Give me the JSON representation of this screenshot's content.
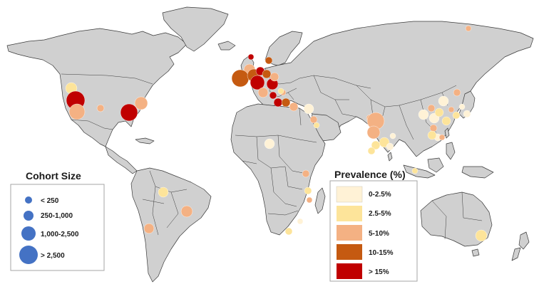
{
  "legends": {
    "cohort": {
      "title": "Cohort Size",
      "items": [
        {
          "label": "< 250"
        },
        {
          "label": "250-1,000"
        },
        {
          "label": "1,000-2,500"
        },
        {
          "label": "> 2,500"
        }
      ],
      "marker_color": "#4472c4"
    },
    "prevalence": {
      "title": "Prevalence (%)",
      "items": [
        {
          "label": "0-2.5%",
          "color": "#fff2d6"
        },
        {
          "label": "2.5-5%",
          "color": "#fde49a"
        },
        {
          "label": "5-10%",
          "color": "#f4b183"
        },
        {
          "label": "10-15%",
          "color": "#c55a11"
        },
        {
          "label": "> 15%",
          "color": "#c00000"
        }
      ]
    }
  },
  "colors": {
    "land": "#d0d0d0",
    "ocean": "#ffffff",
    "border": "#3a3a3a"
  }
}
